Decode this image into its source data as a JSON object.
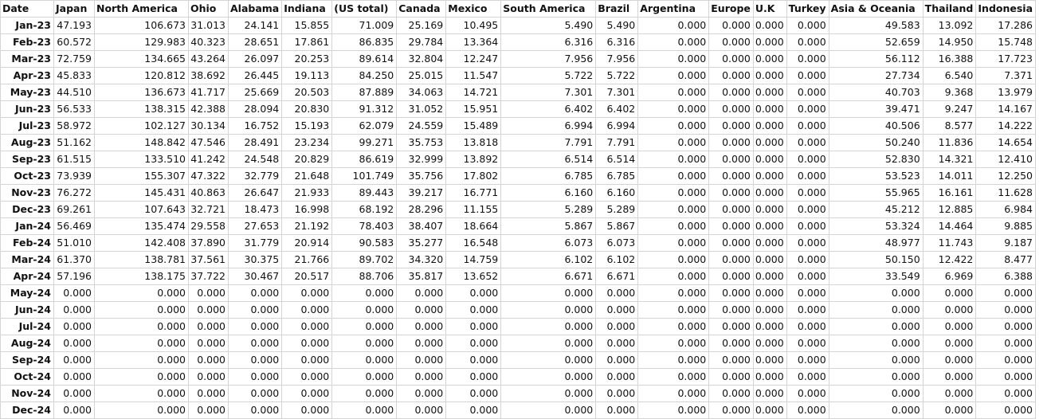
{
  "sheet": {
    "headers": [
      "Date",
      "Japan",
      "North America",
      "Ohio",
      "Alabama",
      "Indiana",
      "(US total)",
      "Canada",
      "Mexico",
      "South America",
      "Brazil",
      "Argentina",
      "Europe",
      "U.K",
      "Turkey",
      "Asia & Oceania",
      "Thailand",
      "Indonesia"
    ],
    "rows": [
      [
        "Jan-23",
        "47.193",
        "106.673",
        "31.013",
        "24.141",
        "15.855",
        "71.009",
        "25.169",
        "10.495",
        "5.490",
        "5.490",
        "0.000",
        "0.000",
        "0.000",
        "0.000",
        "49.583",
        "13.092",
        "17.286"
      ],
      [
        "Feb-23",
        "60.572",
        "129.983",
        "40.323",
        "28.651",
        "17.861",
        "86.835",
        "29.784",
        "13.364",
        "6.316",
        "6.316",
        "0.000",
        "0.000",
        "0.000",
        "0.000",
        "52.659",
        "14.950",
        "15.748"
      ],
      [
        "Mar-23",
        "72.759",
        "134.665",
        "43.264",
        "26.097",
        "20.253",
        "89.614",
        "32.804",
        "12.247",
        "7.956",
        "7.956",
        "0.000",
        "0.000",
        "0.000",
        "0.000",
        "56.112",
        "16.388",
        "17.723"
      ],
      [
        "Apr-23",
        "45.833",
        "120.812",
        "38.692",
        "26.445",
        "19.113",
        "84.250",
        "25.015",
        "11.547",
        "5.722",
        "5.722",
        "0.000",
        "0.000",
        "0.000",
        "0.000",
        "27.734",
        "6.540",
        "7.371"
      ],
      [
        "May-23",
        "44.510",
        "136.673",
        "41.717",
        "25.669",
        "20.503",
        "87.889",
        "34.063",
        "14.721",
        "7.301",
        "7.301",
        "0.000",
        "0.000",
        "0.000",
        "0.000",
        "40.703",
        "9.368",
        "13.979"
      ],
      [
        "Jun-23",
        "56.533",
        "138.315",
        "42.388",
        "28.094",
        "20.830",
        "91.312",
        "31.052",
        "15.951",
        "6.402",
        "6.402",
        "0.000",
        "0.000",
        "0.000",
        "0.000",
        "39.471",
        "9.247",
        "14.167"
      ],
      [
        "Jul-23",
        "58.972",
        "102.127",
        "30.134",
        "16.752",
        "15.193",
        "62.079",
        "24.559",
        "15.489",
        "6.994",
        "6.994",
        "0.000",
        "0.000",
        "0.000",
        "0.000",
        "40.506",
        "8.577",
        "14.222"
      ],
      [
        "Aug-23",
        "51.162",
        "148.842",
        "47.546",
        "28.491",
        "23.234",
        "99.271",
        "35.753",
        "13.818",
        "7.791",
        "7.791",
        "0.000",
        "0.000",
        "0.000",
        "0.000",
        "50.240",
        "11.836",
        "14.654"
      ],
      [
        "Sep-23",
        "61.515",
        "133.510",
        "41.242",
        "24.548",
        "20.829",
        "86.619",
        "32.999",
        "13.892",
        "6.514",
        "6.514",
        "0.000",
        "0.000",
        "0.000",
        "0.000",
        "52.830",
        "14.321",
        "12.410"
      ],
      [
        "Oct-23",
        "73.939",
        "155.307",
        "47.322",
        "32.779",
        "21.648",
        "101.749",
        "35.756",
        "17.802",
        "6.785",
        "6.785",
        "0.000",
        "0.000",
        "0.000",
        "0.000",
        "53.523",
        "14.011",
        "12.250"
      ],
      [
        "Nov-23",
        "76.272",
        "145.431",
        "40.863",
        "26.647",
        "21.933",
        "89.443",
        "39.217",
        "16.771",
        "6.160",
        "6.160",
        "0.000",
        "0.000",
        "0.000",
        "0.000",
        "55.965",
        "16.161",
        "11.628"
      ],
      [
        "Dec-23",
        "69.261",
        "107.643",
        "32.721",
        "18.473",
        "16.998",
        "68.192",
        "28.296",
        "11.155",
        "5.289",
        "5.289",
        "0.000",
        "0.000",
        "0.000",
        "0.000",
        "45.212",
        "12.885",
        "6.984"
      ],
      [
        "Jan-24",
        "56.469",
        "135.474",
        "29.558",
        "27.653",
        "21.192",
        "78.403",
        "38.407",
        "18.664",
        "5.867",
        "5.867",
        "0.000",
        "0.000",
        "0.000",
        "0.000",
        "53.324",
        "14.464",
        "9.885"
      ],
      [
        "Feb-24",
        "51.010",
        "142.408",
        "37.890",
        "31.779",
        "20.914",
        "90.583",
        "35.277",
        "16.548",
        "6.073",
        "6.073",
        "0.000",
        "0.000",
        "0.000",
        "0.000",
        "48.977",
        "11.743",
        "9.187"
      ],
      [
        "Mar-24",
        "61.370",
        "138.781",
        "37.561",
        "30.375",
        "21.766",
        "89.702",
        "34.320",
        "14.759",
        "6.102",
        "6.102",
        "0.000",
        "0.000",
        "0.000",
        "0.000",
        "50.150",
        "12.422",
        "8.477"
      ],
      [
        "Apr-24",
        "57.196",
        "138.175",
        "37.722",
        "30.467",
        "20.517",
        "88.706",
        "35.817",
        "13.652",
        "6.671",
        "6.671",
        "0.000",
        "0.000",
        "0.000",
        "0.000",
        "33.549",
        "6.969",
        "6.388"
      ],
      [
        "May-24",
        "0.000",
        "0.000",
        "0.000",
        "0.000",
        "0.000",
        "0.000",
        "0.000",
        "0.000",
        "0.000",
        "0.000",
        "0.000",
        "0.000",
        "0.000",
        "0.000",
        "0.000",
        "0.000",
        "0.000"
      ],
      [
        "Jun-24",
        "0.000",
        "0.000",
        "0.000",
        "0.000",
        "0.000",
        "0.000",
        "0.000",
        "0.000",
        "0.000",
        "0.000",
        "0.000",
        "0.000",
        "0.000",
        "0.000",
        "0.000",
        "0.000",
        "0.000"
      ],
      [
        "Jul-24",
        "0.000",
        "0.000",
        "0.000",
        "0.000",
        "0.000",
        "0.000",
        "0.000",
        "0.000",
        "0.000",
        "0.000",
        "0.000",
        "0.000",
        "0.000",
        "0.000",
        "0.000",
        "0.000",
        "0.000"
      ],
      [
        "Aug-24",
        "0.000",
        "0.000",
        "0.000",
        "0.000",
        "0.000",
        "0.000",
        "0.000",
        "0.000",
        "0.000",
        "0.000",
        "0.000",
        "0.000",
        "0.000",
        "0.000",
        "0.000",
        "0.000",
        "0.000"
      ],
      [
        "Sep-24",
        "0.000",
        "0.000",
        "0.000",
        "0.000",
        "0.000",
        "0.000",
        "0.000",
        "0.000",
        "0.000",
        "0.000",
        "0.000",
        "0.000",
        "0.000",
        "0.000",
        "0.000",
        "0.000",
        "0.000"
      ],
      [
        "Oct-24",
        "0.000",
        "0.000",
        "0.000",
        "0.000",
        "0.000",
        "0.000",
        "0.000",
        "0.000",
        "0.000",
        "0.000",
        "0.000",
        "0.000",
        "0.000",
        "0.000",
        "0.000",
        "0.000",
        "0.000"
      ],
      [
        "Nov-24",
        "0.000",
        "0.000",
        "0.000",
        "0.000",
        "0.000",
        "0.000",
        "0.000",
        "0.000",
        "0.000",
        "0.000",
        "0.000",
        "0.000",
        "0.000",
        "0.000",
        "0.000",
        "0.000",
        "0.000"
      ],
      [
        "Dec-24",
        "0.000",
        "0.000",
        "0.000",
        "0.000",
        "0.000",
        "0.000",
        "0.000",
        "0.000",
        "0.000",
        "0.000",
        "0.000",
        "0.000",
        "0.000",
        "0.000",
        "0.000",
        "0.000",
        "0.000"
      ]
    ]
  }
}
